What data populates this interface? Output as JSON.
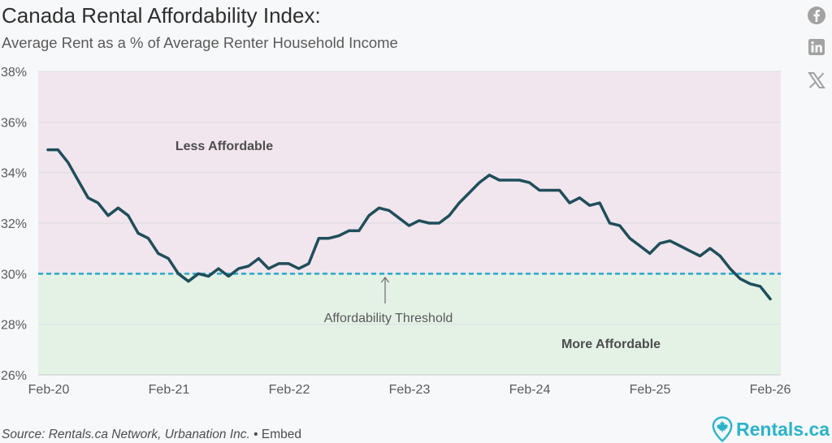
{
  "header": {
    "title": "Canada Rental Affordability Index:",
    "subtitle": "Average Rent as a % of Average Renter Household Income"
  },
  "share_icons": [
    "facebook-icon",
    "linkedin-icon",
    "x-icon"
  ],
  "footer": {
    "source": "Source: Rentals.ca Network, Urbanation Inc.",
    "separator": "•",
    "embed": "Embed",
    "brand": "Rentals.ca"
  },
  "colors": {
    "line": "#1f4e5a",
    "threshold": "#2aa9c9",
    "upper_zone": "#f1e5ee",
    "lower_zone": "#e4f2e6",
    "brand": "#2bb3c8"
  },
  "chart_data": {
    "type": "line",
    "title": "Canada Rental Affordability Index:",
    "subtitle": "Average Rent as a % of Average Renter Household Income",
    "xlabel": "",
    "ylabel": "",
    "ylim": [
      26,
      38
    ],
    "y_ticks": [
      26,
      28,
      30,
      32,
      34,
      36,
      38
    ],
    "y_tick_labels": [
      "26%",
      "28%",
      "30%",
      "32%",
      "34%",
      "36%",
      "38%"
    ],
    "x_ticks": [
      "Feb-20",
      "Feb-21",
      "Feb-22",
      "Feb-23",
      "Feb-24",
      "Feb-25",
      "Feb-26"
    ],
    "grid": true,
    "threshold": {
      "value": 30,
      "label": "Affordability Threshold"
    },
    "zones": {
      "upper_label": "Less Affordable",
      "lower_label": "More Affordable"
    },
    "series": [
      {
        "values": [
          34.9,
          34.9,
          34.4,
          33.7,
          33.0,
          32.8,
          32.3,
          32.6,
          32.3,
          31.6,
          31.4,
          30.8,
          30.6,
          30.0,
          29.7,
          30.0,
          29.9,
          30.2,
          29.9,
          30.2,
          30.3,
          30.6,
          30.2,
          30.4,
          30.4,
          30.2,
          30.4,
          31.4,
          31.4,
          31.5,
          31.7,
          31.7,
          32.3,
          32.6,
          32.5,
          32.2,
          31.9,
          32.1,
          32.0,
          32.0,
          32.3,
          32.8,
          33.2,
          33.6,
          33.9,
          33.7,
          33.7,
          33.7,
          33.6,
          33.3,
          33.3,
          33.3,
          32.8,
          33.0,
          32.7,
          32.8,
          32.0,
          31.9,
          31.4,
          31.1,
          30.8,
          31.2,
          31.3,
          31.1,
          30.9,
          30.7,
          31.0,
          30.7,
          30.2,
          29.8,
          29.6,
          29.5,
          29.0
        ]
      }
    ]
  }
}
